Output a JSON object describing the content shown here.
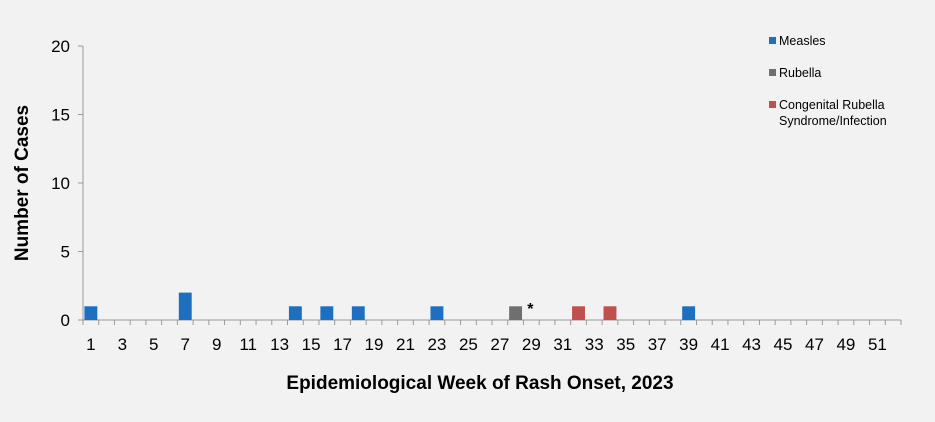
{
  "chart_data": {
    "type": "bar",
    "xlabel": "Epidemiological Week of Rash Onset, 2023",
    "ylabel": "Number of Cases",
    "ylim": [
      0,
      20
    ],
    "yticks": [
      0,
      5,
      10,
      15,
      20
    ],
    "x_range": [
      1,
      52
    ],
    "xtick_labels": [
      "1",
      "3",
      "5",
      "7",
      "9",
      "11",
      "13",
      "15",
      "17",
      "19",
      "21",
      "23",
      "25",
      "27",
      "29",
      "31",
      "33",
      "35",
      "37",
      "39",
      "41",
      "43",
      "45",
      "47",
      "49",
      "51"
    ],
    "grid": false,
    "legend_position": "right",
    "series": [
      {
        "name": "Measles",
        "color": "#1f6fc0",
        "points": [
          {
            "week": 1,
            "value": 1
          },
          {
            "week": 7,
            "value": 2
          },
          {
            "week": 14,
            "value": 1
          },
          {
            "week": 16,
            "value": 1
          },
          {
            "week": 18,
            "value": 1
          },
          {
            "week": 23,
            "value": 1
          },
          {
            "week": 39,
            "value": 1
          }
        ]
      },
      {
        "name": "Rubella",
        "color": "#6f6f6f",
        "points": [
          {
            "week": 28,
            "value": 1
          }
        ]
      },
      {
        "name": "Congenital Rubella Syndrome/Infection",
        "label_lines": [
          "Congenital Rubella",
          "Syndrome/Infection"
        ],
        "color": "#c0504d",
        "points": [
          {
            "week": 32,
            "value": 1
          },
          {
            "week": 34,
            "value": 1
          }
        ]
      }
    ],
    "annotations": [
      {
        "text": "*",
        "week": 29
      }
    ]
  }
}
